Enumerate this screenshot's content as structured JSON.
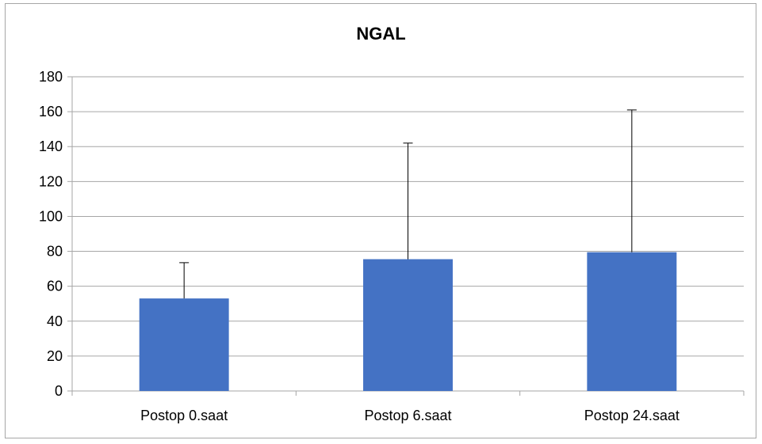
{
  "chart_data": {
    "type": "bar",
    "title": "NGAL",
    "categories": [
      "Postop 0.saat",
      "Postop 6.saat",
      "Postop 24.saat"
    ],
    "values": [
      53,
      75.5,
      79.5
    ],
    "error_upper": [
      73.5,
      142,
      161
    ],
    "ylim": [
      0,
      180
    ],
    "yticks": [
      0,
      20,
      40,
      60,
      80,
      100,
      120,
      140,
      160,
      180
    ],
    "grid": true,
    "bar_color": "#4472c4",
    "grid_color": "#a6a6a6",
    "xlabel": "",
    "ylabel": ""
  }
}
